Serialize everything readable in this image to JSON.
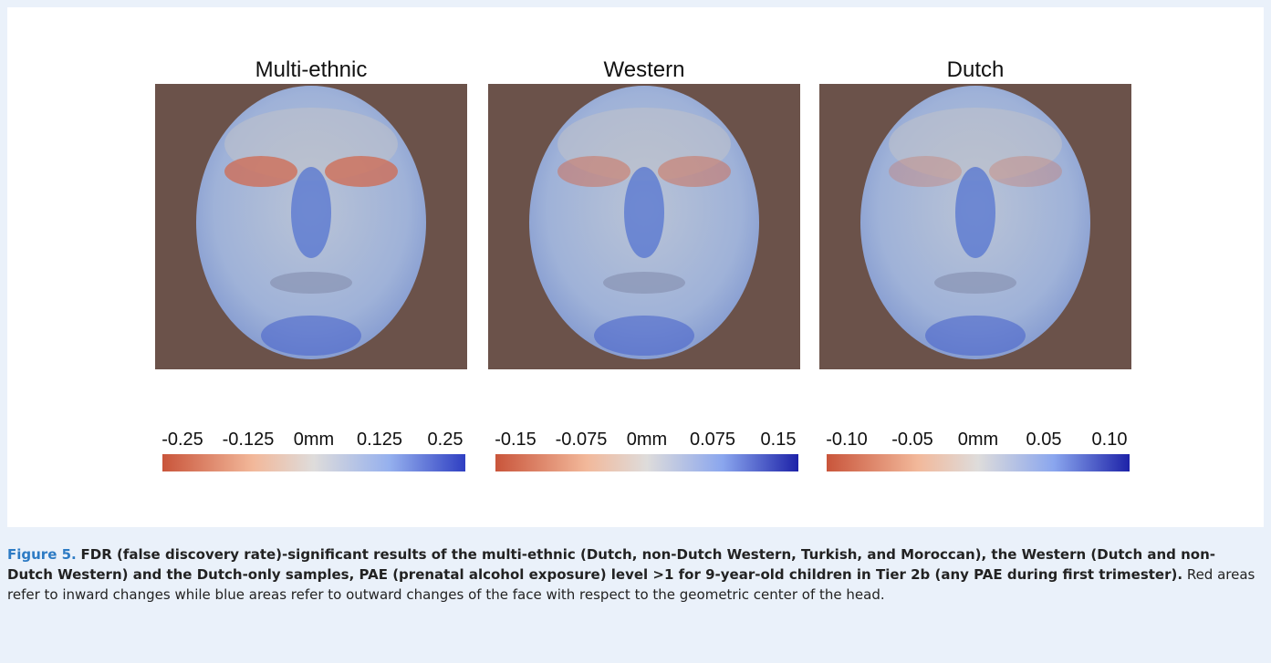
{
  "figure": {
    "panels": [
      {
        "title": "Multi-ethnic",
        "scale": [
          "-0.25",
          "-0.125",
          "0mm",
          "0.125",
          "0.25"
        ]
      },
      {
        "title": "Western",
        "scale": [
          "-0.15",
          "-0.075",
          "0mm",
          "0.075",
          "0.15"
        ]
      },
      {
        "title": "Dutch",
        "scale": [
          "-0.10",
          "-0.05",
          "0mm",
          "0.05",
          "0.10"
        ]
      }
    ],
    "caption": {
      "label": "Figure 5.",
      "bold": "FDR (false discovery rate)-significant results of the multi-ethnic (Dutch, non-Dutch Western, Turkish, and Moroccan), the Western (Dutch and non-Dutch Western) and the Dutch-only samples, PAE (prenatal alcohol exposure) level >1 for 9-year-old children in Tier 2b (any PAE during first trimester).",
      "text": "Red areas refer to inward changes while blue areas refer to outward changes of the face with respect to the geometric center of the head."
    }
  }
}
